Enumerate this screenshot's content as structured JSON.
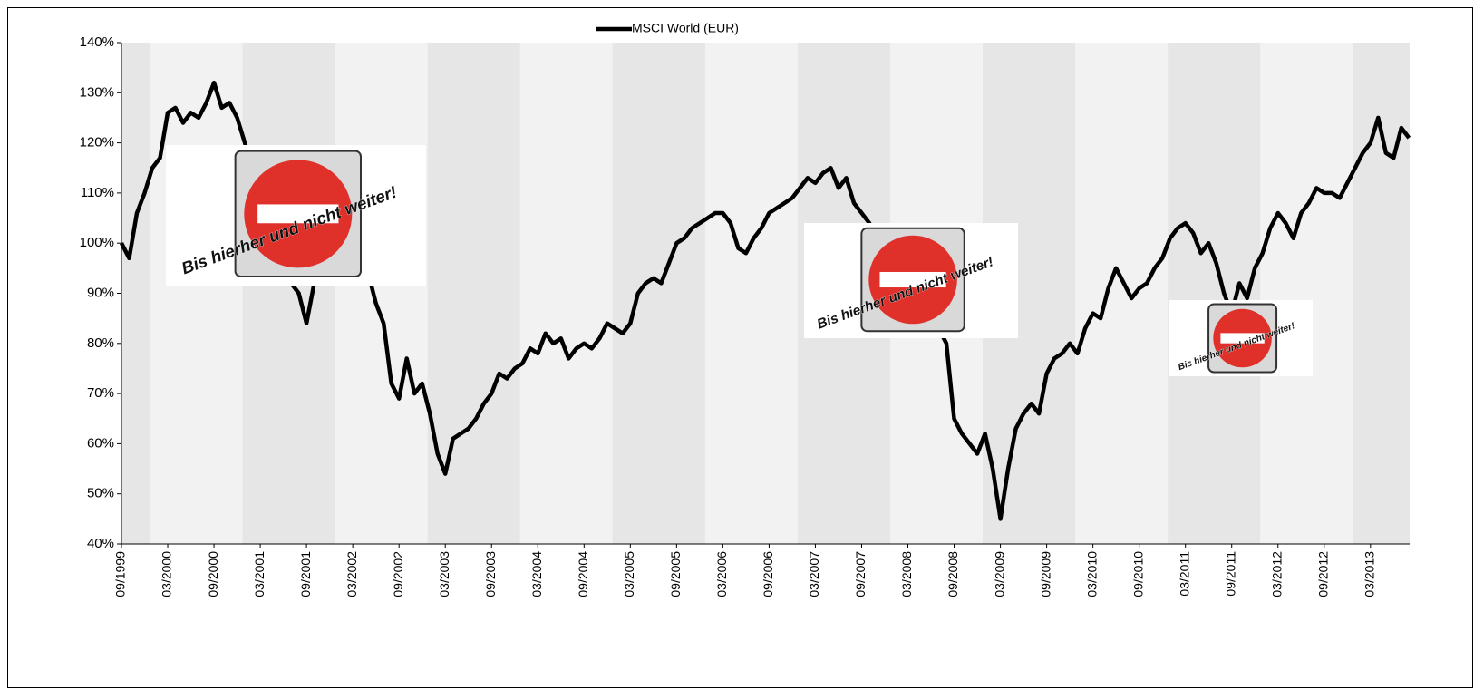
{
  "chart_data": {
    "type": "line",
    "legend": "MSCI World (EUR)",
    "annotations": [
      "Bis hierher und nicht weiter!",
      "Bis hierher und nicht weiter!",
      "Bis hierher und nicht weiter!"
    ],
    "categories": [
      "09/1999",
      null,
      null,
      null,
      null,
      null,
      "03/2000",
      null,
      null,
      null,
      null,
      null,
      "09/2000",
      null,
      null,
      null,
      null,
      null,
      "03/2001",
      null,
      null,
      null,
      null,
      null,
      "09/2001",
      null,
      null,
      null,
      null,
      null,
      "03/2002",
      null,
      null,
      null,
      null,
      null,
      "09/2002",
      null,
      null,
      null,
      null,
      null,
      "03/2003",
      null,
      null,
      null,
      null,
      null,
      "09/2003",
      null,
      null,
      null,
      null,
      null,
      "03/2004",
      null,
      null,
      null,
      null,
      null,
      "09/2004",
      null,
      null,
      null,
      null,
      null,
      "03/2005",
      null,
      null,
      null,
      null,
      null,
      "09/2005",
      null,
      null,
      null,
      null,
      null,
      "03/2006",
      null,
      null,
      null,
      null,
      null,
      "09/2006",
      null,
      null,
      null,
      null,
      null,
      "03/2007",
      null,
      null,
      null,
      null,
      null,
      "09/2007",
      null,
      null,
      null,
      null,
      null,
      "03/2008",
      null,
      null,
      null,
      null,
      null,
      "09/2008",
      null,
      null,
      null,
      null,
      null,
      "03/2009",
      null,
      null,
      null,
      null,
      null,
      "09/2009",
      null,
      null,
      null,
      null,
      null,
      "03/2010",
      null,
      null,
      null,
      null,
      null,
      "09/2010",
      null,
      null,
      null,
      null,
      null,
      "03/2011",
      null,
      null,
      null,
      null,
      null,
      "09/2011",
      null,
      null,
      null,
      null,
      null,
      "03/2012",
      null,
      null,
      null,
      null,
      null,
      "09/2012",
      null,
      null,
      null,
      null,
      null,
      "03/2013",
      null,
      null,
      null,
      null,
      null
    ],
    "series": [
      {
        "name": "MSCI World (EUR)",
        "color": "#000000",
        "values": [
          100,
          97,
          106,
          110,
          115,
          117,
          126,
          127,
          124,
          126,
          125,
          128,
          132,
          127,
          128,
          125,
          120,
          115,
          110,
          105,
          100,
          95,
          92,
          90,
          84,
          92,
          96,
          99,
          100,
          98,
          97,
          96,
          94,
          88,
          84,
          72,
          69,
          77,
          70,
          72,
          66,
          58,
          54,
          61,
          62,
          63,
          65,
          68,
          70,
          74,
          73,
          75,
          76,
          79,
          78,
          82,
          80,
          81,
          77,
          79,
          80,
          79,
          81,
          84,
          83,
          82,
          84,
          90,
          92,
          93,
          92,
          96,
          100,
          101,
          103,
          104,
          105,
          106,
          106,
          104,
          99,
          98,
          101,
          103,
          106,
          107,
          108,
          109,
          111,
          113,
          112,
          114,
          115,
          111,
          113,
          108,
          106,
          104,
          101,
          97,
          94,
          92,
          90,
          88,
          87,
          85,
          83,
          80,
          65,
          62,
          60,
          58,
          62,
          55,
          45,
          55,
          63,
          66,
          68,
          66,
          74,
          77,
          78,
          80,
          78,
          83,
          86,
          85,
          91,
          95,
          92,
          89,
          91,
          92,
          95,
          97,
          101,
          103,
          104,
          102,
          98,
          100,
          96,
          90,
          86,
          92,
          89,
          95,
          98,
          103,
          106,
          104,
          101,
          106,
          108,
          111,
          110,
          110,
          109,
          112,
          115,
          118,
          120,
          125,
          118,
          117,
          123,
          121
        ]
      }
    ],
    "ylim": [
      40,
      140
    ],
    "yticks": [
      {
        "value": 40,
        "label": "40%"
      },
      {
        "value": 50,
        "label": "50%"
      },
      {
        "value": 60,
        "label": "60%"
      },
      {
        "value": 70,
        "label": "70%"
      },
      {
        "value": 80,
        "label": "80%"
      },
      {
        "value": 90,
        "label": "90%"
      },
      {
        "value": 100,
        "label": "100%"
      },
      {
        "value": 110,
        "label": "110%"
      },
      {
        "value": 120,
        "label": "120%"
      },
      {
        "value": 130,
        "label": "130%"
      },
      {
        "value": 140,
        "label": "140%"
      }
    ],
    "grid": false
  }
}
